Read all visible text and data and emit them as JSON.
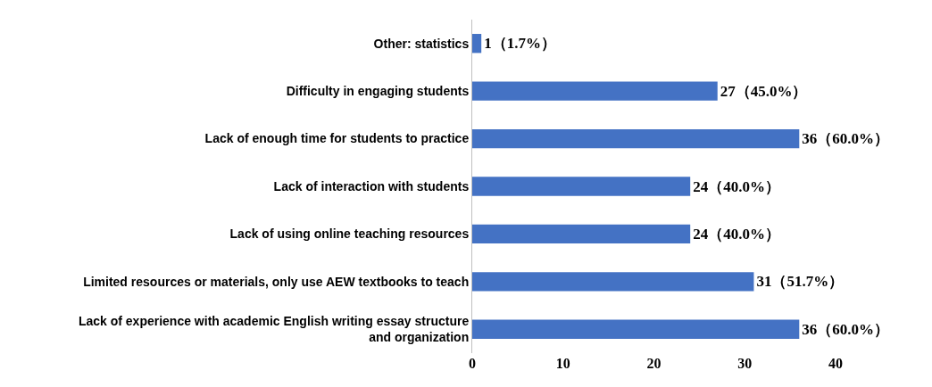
{
  "chart_data": {
    "type": "bar",
    "orientation": "horizontal",
    "categories": [
      "Other: statistics",
      "Difficulty in engaging students",
      "Lack of enough time for students to practice",
      "Lack of interaction with students",
      "Lack of using online teaching resources",
      "Limited resources or materials, only use AEW textbooks to teach",
      "Lack of experience with academic English writing essay structure and organization"
    ],
    "values": [
      1,
      27,
      36,
      24,
      24,
      31,
      36
    ],
    "value_labels": [
      "1（1.7%）",
      "27（45.0%）",
      "36（60.0%）",
      "24（40.0%）",
      "24（40.0%）",
      "31（51.7%）",
      "36（60.0%）"
    ],
    "color": "#4472c4",
    "xlim": [
      0,
      40
    ],
    "xticks": [
      0,
      10,
      20,
      30,
      40
    ],
    "grid": false
  }
}
